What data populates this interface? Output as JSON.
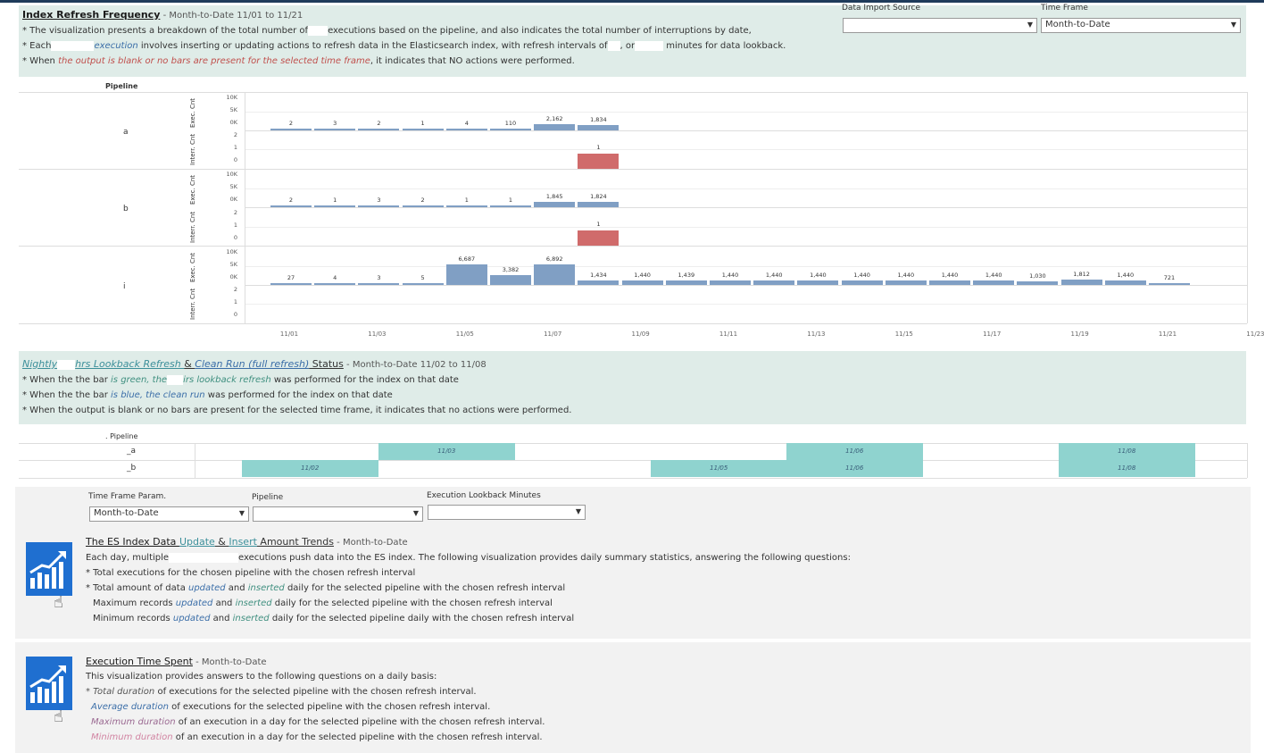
{
  "panel1": {
    "title": "Index Refresh Frequency",
    "subtitle": " - Month-to-Date 11/01 to 11/21",
    "line1a": "* The visualization presents a breakdown of the total number of",
    "line1b": "executions based on the pipeline, and also indicates the total number of interruptions by date,",
    "line2a": "* Each",
    "line2b": "execution",
    "line2c": "involves inserting or updating actions to refresh data in the Elasticsearch index, with refresh intervals of",
    "line2d": ", or",
    "line2e": "minutes for data lookback.",
    "line3a": "* When ",
    "line3b": "the output is blank or no bars are present for the selected time frame",
    "line3c": ", it indicates that NO actions were performed."
  },
  "filters_top": {
    "data_import_label": "Data Import Source",
    "data_import_value": "",
    "time_frame_label": "Time Frame",
    "time_frame_value": "Month-to-Date"
  },
  "chart_data": {
    "type": "bar",
    "header": "Pipeline",
    "x_ticks": [
      "11/01",
      "11/03",
      "11/05",
      "11/07",
      "11/09",
      "11/11",
      "11/13",
      "11/15",
      "11/17",
      "11/19",
      "11/21",
      "11/23"
    ],
    "row_labels": [
      "a",
      "b",
      "i"
    ],
    "exec_axis_label": "Exec. Cnt",
    "interr_axis_label": "Interr. Cnt",
    "exec_ticks": [
      "10K",
      "5K",
      "0K"
    ],
    "interr_ticks": [
      "2",
      "1",
      "0"
    ],
    "dates": [
      "11/01",
      "11/02",
      "11/03",
      "11/04",
      "11/05",
      "11/06",
      "11/07",
      "11/08",
      "11/09",
      "11/10",
      "11/11",
      "11/12",
      "11/13",
      "11/14",
      "11/15",
      "11/16",
      "11/17",
      "11/18",
      "11/19",
      "11/20",
      "11/21"
    ],
    "series": [
      {
        "pipeline": "a",
        "exec": [
          2,
          3,
          2,
          1,
          4,
          110,
          2162,
          1834
        ],
        "exec_labels": [
          "2",
          "3",
          "2",
          "1",
          "4",
          "110",
          "2,162",
          "1,834"
        ],
        "interr": [
          0,
          0,
          0,
          0,
          0,
          0,
          0,
          1
        ],
        "interr_labels": [
          "",
          "",
          "",
          "",
          "",
          "",
          "",
          "1"
        ]
      },
      {
        "pipeline": "b",
        "exec": [
          2,
          1,
          3,
          2,
          1,
          1,
          1845,
          1824
        ],
        "exec_labels": [
          "2",
          "1",
          "3",
          "2",
          "1",
          "1",
          "1,845",
          "1,824"
        ],
        "interr": [
          0,
          0,
          0,
          0,
          0,
          0,
          0,
          1
        ],
        "interr_labels": [
          "",
          "",
          "",
          "",
          "",
          "",
          "",
          "1"
        ]
      },
      {
        "pipeline": "i",
        "exec": [
          27,
          4,
          3,
          5,
          6687,
          3382,
          6892,
          1434,
          1440,
          1439,
          1440,
          1440,
          1440,
          1440,
          1440,
          1440,
          1440,
          1030,
          1812,
          1440,
          721
        ],
        "exec_labels": [
          "27",
          "4",
          "3",
          "5",
          "6,687",
          "3,382",
          "6,892",
          "1,434",
          "1,440",
          "1,439",
          "1,440",
          "1,440",
          "1,440",
          "1,440",
          "1,440",
          "1,440",
          "1,440",
          "1,030",
          "1,812",
          "1,440",
          "721"
        ],
        "interr": [],
        "interr_labels": []
      }
    ],
    "ylim_exec": [
      0,
      10000
    ],
    "ylim_interr": [
      0,
      2
    ]
  },
  "panel2": {
    "title_a": "Nightly",
    "title_b": "hrs Lookback Refresh ",
    "title_c": "& ",
    "title_d": "Clean Run (full refresh)",
    "title_e": " Status",
    "subtitle": " - Month-to-Date 11/02 to 11/08",
    "line1a": "* When the the bar ",
    "line1b": "is green, the",
    "line1c": "irs lookback refresh",
    "line1d": " was performed for the index on that date",
    "line2a": "* When the the bar ",
    "line2b": "is blue, the clean run",
    "line2c": " was performed for the index on that date",
    "line3": "* When the output is blank or no bars are present for the selected time frame, it indicates that no actions were performed."
  },
  "nightly": {
    "header": ". Pipeline",
    "rows": [
      {
        "label": "_a",
        "bars": [
          {
            "date": "11/03"
          },
          {
            "date": "11/06"
          },
          {
            "date": "11/08"
          }
        ]
      },
      {
        "label": "_b",
        "bars": [
          {
            "date": "11/02"
          },
          {
            "date": "11/05"
          },
          {
            "date": "11/06"
          },
          {
            "date": "11/08"
          }
        ]
      }
    ]
  },
  "filters_bottom": {
    "time_frame_label": "Time Frame Param.",
    "time_frame_value": "Month-to-Date",
    "pipeline_label": "Pipeline",
    "pipeline_value": "",
    "lookback_label": "Execution Lookback Minutes",
    "lookback_value": ""
  },
  "card1": {
    "title_a": "The ES Index Data ",
    "title_b": "Update",
    "title_c": " & ",
    "title_d": "Insert",
    "title_e": " Amount Trends",
    "subtitle": " - Month-to-Date",
    "l1a": "Each day, multiple",
    "l1b": "executions push data into the ES index. The following visualization provides daily summary statistics, answering the following questions:",
    "l2": "* Total executions for the chosen pipeline with the chosen refresh interval",
    "l3a": "* Total amount of data ",
    "l3b": "updated",
    "l3c": " and ",
    "l3d": "inserted",
    "l3e": " daily for the selected pipeline with the chosen refresh interval",
    "l4a": "Maximum records ",
    "l4b": "updated",
    "l4c": " and ",
    "l4d": "inserted",
    "l4e": " daily for the selected pipeline with the chosen refresh interval",
    "l5a": "Minimum records ",
    "l5b": "updated",
    "l5c": " and ",
    "l5d": "inserted",
    "l5e": " daily for the selected pipeline  daily with the chosen refresh interval"
  },
  "card2": {
    "title": "Execution Time Spent",
    "subtitle": " - Month-to-Date",
    "l1": "This visualization provides answers to the following questions on a daily basis:",
    "l2a": "* Total duration",
    "l2b": " of executions for the selected pipeline with the chosen refresh interval.",
    "l3a": "Average duration",
    "l3b": " of executions for the selected pipeline with the chosen refresh interval.",
    "l4a": "Maximum duration",
    "l4b": " of an execution in a day for the selected pipeline with the chosen refresh interval.",
    "l5a": "Minimum duration",
    "l5b": " of an execution in a day for the selected pipeline with the chosen refresh interval."
  },
  "colors": {
    "exec_bar": "#809fc4",
    "interr_bar": "#d06b6b",
    "nightly_bar": "#8fd3cf",
    "panel_bg": "#dfece8"
  }
}
